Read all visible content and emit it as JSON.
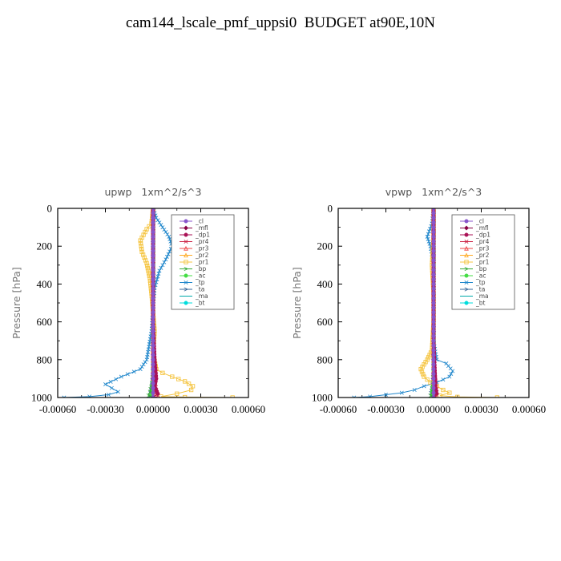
{
  "title": "cam144_lscale_pmf_uppsi0  BUDGET at90E,10N",
  "chart_data": [
    {
      "type": "line",
      "title": "upwp   1xm^2/s^3",
      "ylabel": "Pressure [hPa]",
      "xlim": [
        -0.0006,
        0.0006
      ],
      "ylim": [
        1000,
        0
      ],
      "xticks": [
        "-0.00060",
        "-0.00030",
        "0.00000",
        "0.00030",
        "0.00060"
      ],
      "yticks": [
        "0",
        "200",
        "400",
        "600",
        "800",
        "1000"
      ],
      "legend_position": "top-right",
      "series": [
        {
          "name": "_cl",
          "color": "#8855cc",
          "marker": "circle",
          "x": [
            0,
            0
          ],
          "y": [
            0,
            1000
          ]
        },
        {
          "name": "_mfl",
          "color": "#880044",
          "marker": "diamond",
          "x": [
            0,
            0
          ],
          "y": [
            0,
            1000
          ]
        },
        {
          "name": "_dp1",
          "color": "#aa1155",
          "marker": "circle",
          "x": [
            0,
            0,
            0,
            0,
            0,
            0,
            0,
            5e-06,
            1e-05,
            2e-05,
            1e-05,
            3e-05,
            0
          ],
          "y": [
            0,
            100,
            200,
            300,
            400,
            500,
            600,
            700,
            800,
            900,
            940,
            980,
            1000
          ]
        },
        {
          "name": "_pr4",
          "color": "#cc2244",
          "marker": "cross",
          "x": [
            0,
            0,
            0,
            1e-05,
            2e-05,
            3e-05,
            2e-05
          ],
          "y": [
            0,
            400,
            800,
            900,
            960,
            990,
            1000
          ]
        },
        {
          "name": "_pr3",
          "color": "#ee4444",
          "marker": "triangle",
          "x": [
            0,
            0,
            0,
            1e-05,
            0
          ],
          "y": [
            0,
            500,
            900,
            980,
            1000
          ]
        },
        {
          "name": "_pr2",
          "color": "#ffaa22",
          "marker": "triangle",
          "x": [
            0,
            0,
            0,
            1e-05,
            0
          ],
          "y": [
            0,
            500,
            900,
            980,
            1000
          ]
        },
        {
          "name": "_pr1",
          "color": "#f5c542",
          "marker": "square",
          "x": [
            0,
            -1e-05,
            -4e-05,
            -8e-05,
            -7e-05,
            -4e-05,
            -2e-05,
            -1e-05,
            0,
            1e-05,
            0,
            2e-05,
            6e-05,
            0.00012,
            0.0002,
            0.00025,
            0.00024,
            0.00015,
            5e-05,
            0.0002,
            0.0005
          ],
          "y": [
            0,
            80,
            110,
            170,
            230,
            290,
            370,
            450,
            550,
            650,
            760,
            850,
            870,
            890,
            915,
            940,
            960,
            980,
            995,
            998,
            1000
          ]
        },
        {
          "name": "_bp",
          "color": "#33aa33",
          "marker": "arrow",
          "x": [
            0,
            0,
            0,
            -2e-05,
            -3e-05,
            0
          ],
          "y": [
            0,
            500,
            900,
            970,
            990,
            1000
          ]
        },
        {
          "name": "_ac",
          "color": "#44dd44",
          "marker": "circle",
          "x": [
            0,
            0,
            0,
            -1e-05,
            0
          ],
          "y": [
            0,
            500,
            900,
            985,
            1000
          ]
        },
        {
          "name": "_tp",
          "color": "#2288cc",
          "marker": "cross",
          "x": [
            0,
            2e-05,
            6e-05,
            0.0001,
            0.00012,
            8e-05,
            4e-05,
            1e-05,
            0,
            -1e-05,
            -4e-05,
            -8e-05,
            -0.0002,
            -0.0003,
            -0.00026,
            -0.00022,
            -0.00028,
            -0.0004,
            -0.00056
          ],
          "y": [
            0,
            50,
            100,
            150,
            200,
            270,
            330,
            420,
            520,
            650,
            800,
            850,
            890,
            930,
            950,
            970,
            985,
            995,
            1000
          ]
        },
        {
          "name": "_ta",
          "color": "#336699",
          "marker": "arrow",
          "x": [
            0,
            0,
            0,
            0,
            -1e-05,
            -2e-05,
            0
          ],
          "y": [
            0,
            300,
            600,
            850,
            950,
            990,
            1000
          ]
        },
        {
          "name": "_ma",
          "color": "#00aaaa",
          "marker": "dash",
          "x": [
            0,
            0
          ],
          "y": [
            0,
            1000
          ]
        },
        {
          "name": "_bt",
          "color": "#00dddd",
          "marker": "star",
          "x": [
            0,
            0
          ],
          "y": [
            0,
            1000
          ]
        }
      ]
    },
    {
      "type": "line",
      "title": "vpwp   1xm^2/s^3",
      "ylabel": "Pressure [hPa]",
      "xlim": [
        -0.0006,
        0.0006
      ],
      "ylim": [
        1000,
        0
      ],
      "xticks": [
        "-0.00060",
        "-0.00030",
        "0.00000",
        "0.00030",
        "0.00060"
      ],
      "yticks": [
        "0",
        "200",
        "400",
        "600",
        "800",
        "1000"
      ],
      "legend_position": "top-right",
      "series": [
        {
          "name": "_cl",
          "color": "#8855cc",
          "marker": "circle",
          "x": [
            0,
            0
          ],
          "y": [
            0,
            1000
          ]
        },
        {
          "name": "_mfl",
          "color": "#880044",
          "marker": "diamond",
          "x": [
            0,
            0
          ],
          "y": [
            0,
            1000
          ]
        },
        {
          "name": "_dp1",
          "color": "#aa1155",
          "marker": "circle",
          "x": [
            0,
            0,
            0,
            0,
            0,
            0,
            0,
            0,
            5e-06,
            1e-05,
            1e-05,
            2e-05,
            0
          ],
          "y": [
            0,
            100,
            200,
            300,
            400,
            500,
            600,
            700,
            800,
            900,
            940,
            980,
            1000
          ]
        },
        {
          "name": "_pr4",
          "color": "#cc2244",
          "marker": "cross",
          "x": [
            0,
            0,
            0,
            1e-05,
            2e-05,
            1e-05
          ],
          "y": [
            0,
            400,
            800,
            900,
            970,
            1000
          ]
        },
        {
          "name": "_pr3",
          "color": "#ee4444",
          "marker": "triangle",
          "x": [
            0,
            0,
            0,
            1e-05,
            0
          ],
          "y": [
            0,
            500,
            900,
            980,
            1000
          ]
        },
        {
          "name": "_pr2",
          "color": "#ffaa22",
          "marker": "triangle",
          "x": [
            0,
            0,
            0,
            1e-05,
            0
          ],
          "y": [
            0,
            500,
            900,
            980,
            1000
          ]
        },
        {
          "name": "_pr1",
          "color": "#f5c542",
          "marker": "square",
          "x": [
            0,
            0,
            -1e-05,
            0,
            0,
            -1e-05,
            -4e-05,
            -8e-05,
            -6e-05,
            -2e-05,
            2e-05,
            6e-05,
            0.0001,
            4e-05,
            0.00015,
            0.0004
          ],
          "y": [
            0,
            150,
            300,
            450,
            600,
            750,
            800,
            850,
            890,
            920,
            940,
            960,
            975,
            990,
            997,
            1000
          ]
        },
        {
          "name": "_bp",
          "color": "#33aa33",
          "marker": "arrow",
          "x": [
            0,
            0,
            0,
            -1e-05,
            -2e-05,
            0
          ],
          "y": [
            0,
            500,
            900,
            970,
            990,
            1000
          ]
        },
        {
          "name": "_ac",
          "color": "#44dd44",
          "marker": "circle",
          "x": [
            0,
            0,
            0,
            -1e-05,
            0
          ],
          "y": [
            0,
            500,
            900,
            985,
            1000
          ]
        },
        {
          "name": "_tp",
          "color": "#2288cc",
          "marker": "cross",
          "x": [
            0,
            -1e-05,
            -4e-05,
            -2e-05,
            0,
            0,
            0,
            2e-05,
            8e-05,
            0.00012,
            0.0001,
            2e-05,
            -6e-05,
            -0.00012,
            -0.0002,
            -0.0003,
            -0.0004,
            -0.0005
          ],
          "y": [
            0,
            80,
            150,
            200,
            300,
            500,
            700,
            800,
            820,
            860,
            890,
            920,
            940,
            960,
            975,
            985,
            995,
            1000
          ]
        },
        {
          "name": "_ta",
          "color": "#336699",
          "marker": "arrow",
          "x": [
            0,
            0,
            0,
            0,
            -1e-05,
            -2e-05,
            0
          ],
          "y": [
            0,
            300,
            600,
            850,
            950,
            990,
            1000
          ]
        },
        {
          "name": "_ma",
          "color": "#00aaaa",
          "marker": "dash",
          "x": [
            0,
            0
          ],
          "y": [
            0,
            1000
          ]
        },
        {
          "name": "_bt",
          "color": "#00dddd",
          "marker": "star",
          "x": [
            0,
            0
          ],
          "y": [
            0,
            1000
          ]
        }
      ]
    }
  ]
}
